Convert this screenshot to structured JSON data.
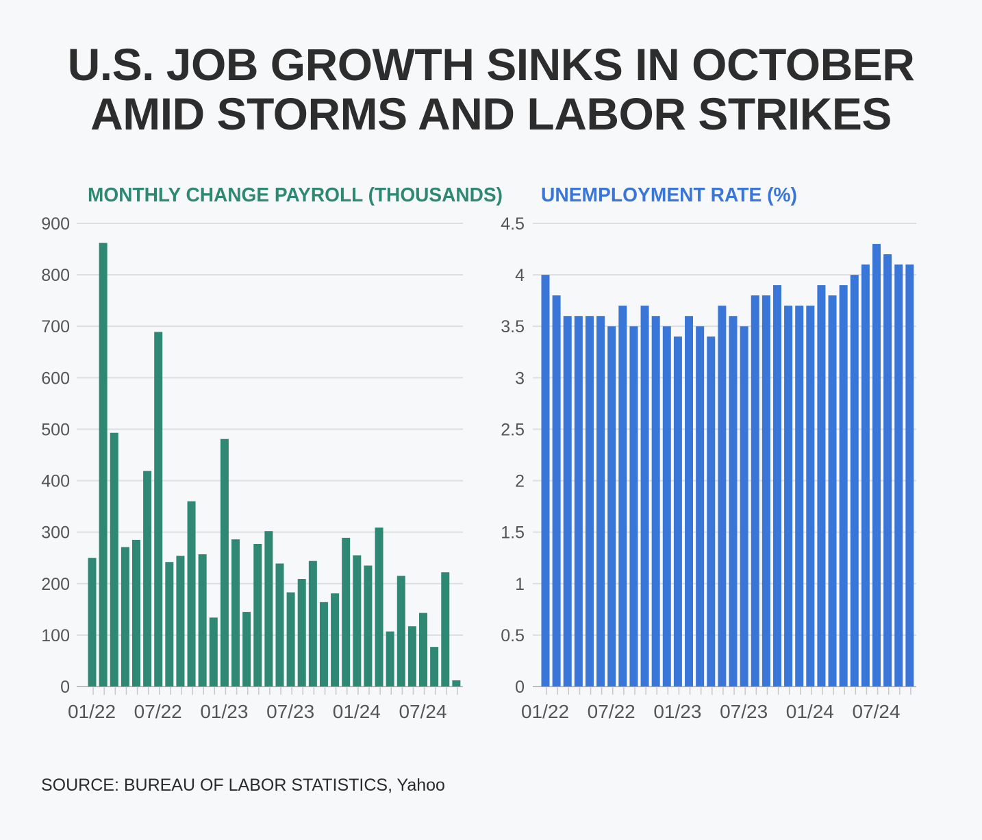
{
  "headline": {
    "line1": "U.S. JOB GROWTH SINKS IN OCTOBER",
    "line2": "AMID STORMS AND LABOR STRIKES"
  },
  "source": "SOURCE: BUREAU OF LABOR STATISTICS, Yahoo",
  "chart_data": [
    {
      "type": "bar",
      "title": "MONTHLY CHANGE PAYROLL (THOUSANDS)",
      "color": "#2e8873",
      "ylim": [
        0,
        900
      ],
      "yticks": [
        "0",
        "100",
        "200",
        "300",
        "400",
        "500",
        "600",
        "700",
        "800",
        "900"
      ],
      "xtick_labels": [
        "01/22",
        "07/22",
        "01/23",
        "07/23",
        "01/24",
        "07/24"
      ],
      "categories": [
        "01/22",
        "02/22",
        "03/22",
        "04/22",
        "05/22",
        "06/22",
        "07/22",
        "08/22",
        "09/22",
        "10/22",
        "11/22",
        "12/22",
        "01/23",
        "02/23",
        "03/23",
        "04/23",
        "05/23",
        "06/23",
        "07/23",
        "08/23",
        "09/23",
        "10/23",
        "11/23",
        "12/23",
        "01/24",
        "02/24",
        "03/24",
        "04/24",
        "05/24",
        "06/24",
        "07/24",
        "08/24",
        "09/24",
        "10/24"
      ],
      "values": [
        250,
        862,
        493,
        271,
        285,
        419,
        689,
        242,
        254,
        360,
        257,
        134,
        481,
        286,
        145,
        277,
        302,
        239,
        183,
        209,
        244,
        164,
        181,
        289,
        255,
        235,
        309,
        107,
        215,
        117,
        143,
        77,
        222,
        12
      ],
      "grid": true
    },
    {
      "type": "bar",
      "title": "UNEMPLOYMENT RATE (%)",
      "color": "#3a76d8",
      "ylim": [
        0,
        4.5
      ],
      "yticks": [
        "0",
        "0.5",
        "1",
        "1.5",
        "2",
        "2.5",
        "3",
        "3.5",
        "4",
        "4.5"
      ],
      "xtick_labels": [
        "01/22",
        "07/22",
        "01/23",
        "07/23",
        "01/24",
        "07/24"
      ],
      "categories": [
        "01/22",
        "02/22",
        "03/22",
        "04/22",
        "05/22",
        "06/22",
        "07/22",
        "08/22",
        "09/22",
        "10/22",
        "11/22",
        "12/22",
        "01/23",
        "02/23",
        "03/23",
        "04/23",
        "05/23",
        "06/23",
        "07/23",
        "08/23",
        "09/23",
        "10/23",
        "11/23",
        "12/23",
        "01/24",
        "02/24",
        "03/24",
        "04/24",
        "05/24",
        "06/24",
        "07/24",
        "08/24",
        "09/24",
        "10/24"
      ],
      "values": [
        4.0,
        3.8,
        3.6,
        3.6,
        3.6,
        3.6,
        3.5,
        3.7,
        3.5,
        3.7,
        3.6,
        3.5,
        3.4,
        3.6,
        3.5,
        3.4,
        3.7,
        3.6,
        3.5,
        3.8,
        3.8,
        3.9,
        3.7,
        3.7,
        3.7,
        3.9,
        3.8,
        3.9,
        4.0,
        4.1,
        4.3,
        4.2,
        4.1,
        4.1
      ],
      "grid": true
    }
  ]
}
